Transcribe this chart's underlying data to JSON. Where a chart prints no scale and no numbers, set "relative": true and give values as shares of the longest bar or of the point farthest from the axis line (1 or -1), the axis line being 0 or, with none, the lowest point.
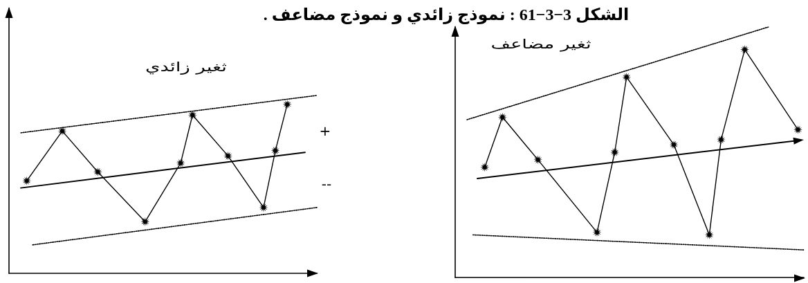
{
  "chart_data": [
    {
      "type": "line",
      "relative": true,
      "title": "ثغير زائدي",
      "annotations": [
        "الشكل 3−3−61 : نموذج زائدي و نموذج مضاعف .",
        "+",
        "--"
      ],
      "categories": [
        null,
        null,
        null,
        null,
        null,
        null,
        null,
        null,
        null,
        null,
        null,
        null,
        null,
        null,
        null,
        null,
        null,
        null,
        null,
        null,
        null,
        null,
        null,
        null,
        null,
        null,
        null,
        null,
        null,
        null,
        null,
        null,
        null,
        null,
        null,
        null,
        null,
        null,
        null,
        null,
        null,
        null,
        null,
        null,
        null,
        null,
        null,
        null,
        null,
        null,
        null,
        null,
        null
      ],
      "series": [
        {
          "color": "#000000",
          "marker": "star",
          "line_style": "solid",
          "values": [
            null,
            null,
            null,
            0.52,
            null,
            null,
            null,
            null,
            null,
            0.8,
            null,
            null,
            null,
            null,
            null,
            0.57,
            null,
            null,
            null,
            null,
            null,
            null,
            null,
            0.29,
            null,
            null,
            null,
            null,
            null,
            0.62,
            null,
            0.89,
            null,
            null,
            null,
            null,
            null,
            0.66,
            null,
            null,
            null,
            null,
            null,
            0.37,
            null,
            0.69,
            null,
            0.95,
            null,
            null,
            null,
            null,
            null
          ]
        },
        {
          "color": "#000000",
          "marker": "none",
          "line_style": "solid",
          "values": [
            null,
            null,
            0.48,
            null,
            null,
            null,
            null,
            null,
            null,
            null,
            null,
            null,
            null,
            null,
            null,
            null,
            null,
            null,
            null,
            null,
            null,
            null,
            null,
            null,
            null,
            null,
            null,
            null,
            null,
            null,
            null,
            null,
            null,
            null,
            null,
            null,
            null,
            null,
            null,
            null,
            null,
            null,
            null,
            null,
            null,
            null,
            null,
            null,
            null,
            null,
            0.68,
            null,
            null
          ]
        },
        {
          "color": "#000000",
          "marker": "none",
          "line_style": "dotted",
          "values": [
            null,
            null,
            0.79,
            null,
            null,
            null,
            null,
            null,
            null,
            null,
            null,
            null,
            null,
            null,
            null,
            null,
            null,
            null,
            null,
            null,
            null,
            null,
            null,
            null,
            null,
            null,
            null,
            null,
            null,
            null,
            null,
            null,
            null,
            null,
            null,
            null,
            null,
            null,
            null,
            null,
            null,
            null,
            null,
            null,
            null,
            null,
            null,
            null,
            null,
            null,
            null,
            null,
            1
          ]
        },
        {
          "color": "#000000",
          "marker": "none",
          "line_style": "dotted",
          "values": [
            null,
            null,
            null,
            null,
            0.16,
            null,
            null,
            null,
            null,
            null,
            null,
            null,
            null,
            null,
            null,
            null,
            null,
            null,
            null,
            null,
            null,
            null,
            null,
            null,
            null,
            null,
            null,
            null,
            null,
            null,
            null,
            null,
            null,
            null,
            null,
            null,
            null,
            null,
            null,
            null,
            null,
            null,
            null,
            null,
            null,
            null,
            null,
            null,
            null,
            null,
            null,
            null,
            0.37
          ]
        }
      ]
    },
    {
      "type": "line",
      "relative": true,
      "title": "ثغير مضاعف",
      "categories": [
        null,
        null,
        null,
        null,
        null,
        null,
        null,
        null,
        null,
        null,
        null,
        null,
        null,
        null,
        null,
        null,
        null,
        null,
        null,
        null,
        null,
        null,
        null,
        null,
        null,
        null,
        null,
        null,
        null,
        null,
        null,
        null,
        null,
        null,
        null,
        null,
        null,
        null,
        null,
        null,
        null,
        null,
        null,
        null,
        null,
        null,
        null,
        null,
        null,
        null,
        null,
        null,
        null,
        null,
        null,
        null,
        null,
        null,
        null,
        null
      ],
      "series": [
        {
          "color": "#000000",
          "marker": "star",
          "line_style": "solid",
          "values": [
            null,
            null,
            null,
            null,
            null,
            0.44,
            null,
            null,
            0.64,
            null,
            null,
            null,
            null,
            null,
            0.47,
            null,
            null,
            null,
            null,
            null,
            null,
            null,
            null,
            null,
            0.18,
            null,
            null,
            0.5,
            null,
            0.8,
            null,
            null,
            null,
            null,
            null,
            null,
            null,
            0.53,
            null,
            null,
            null,
            null,
            null,
            0.17,
            null,
            0.55,
            null,
            null,
            null,
            0.91,
            null,
            null,
            null,
            null,
            null,
            null,
            null,
            null,
            0.59,
            null
          ]
        },
        {
          "color": "#000000",
          "marker": "none",
          "line_style": "dotted",
          "values": [
            null,
            null,
            0.63,
            null,
            null,
            null,
            null,
            null,
            null,
            null,
            null,
            null,
            null,
            null,
            null,
            null,
            null,
            null,
            null,
            null,
            null,
            null,
            null,
            null,
            null,
            null,
            null,
            null,
            null,
            null,
            null,
            null,
            null,
            null,
            null,
            null,
            null,
            null,
            null,
            null,
            null,
            null,
            null,
            null,
            null,
            null,
            null,
            null,
            null,
            null,
            null,
            null,
            null,
            1,
            null,
            null,
            null,
            null,
            null,
            null
          ]
        },
        {
          "color": "#000000",
          "marker": "none",
          "line_style": "dotted",
          "values": [
            null,
            null,
            null,
            0.17,
            null,
            null,
            null,
            null,
            null,
            null,
            null,
            null,
            null,
            null,
            null,
            null,
            null,
            null,
            null,
            null,
            null,
            null,
            null,
            null,
            null,
            null,
            null,
            null,
            null,
            null,
            null,
            null,
            null,
            null,
            null,
            null,
            null,
            null,
            null,
            null,
            null,
            null,
            null,
            null,
            null,
            null,
            null,
            null,
            null,
            null,
            null,
            null,
            null,
            null,
            null,
            null,
            null,
            null,
            null,
            0.11
          ]
        }
      ]
    }
  ]
}
